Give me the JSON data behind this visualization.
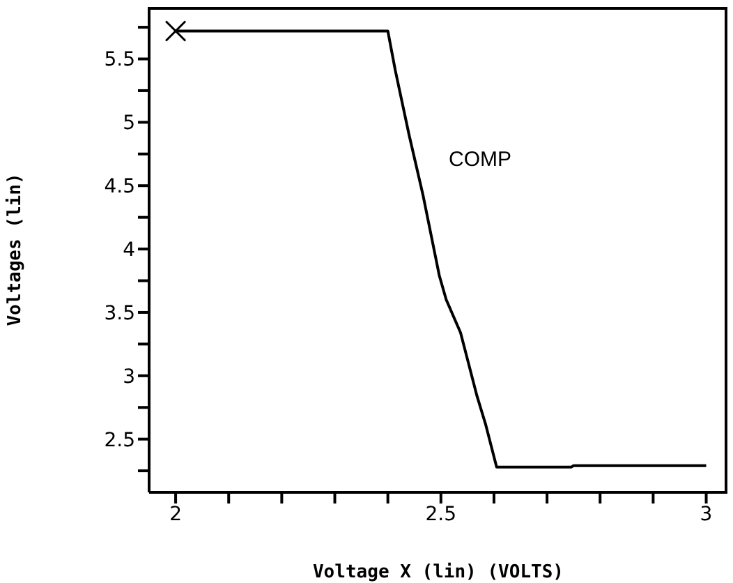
{
  "chart_data": {
    "type": "line",
    "xlabel": "Voltage X (lin) (VOLTS)",
    "ylabel": "Voltages (lin)",
    "annotations": [
      "COMP"
    ],
    "series": [
      {
        "type": "scatter",
        "color": "#000000",
        "marker": "cross",
        "x": [
          2
        ],
        "values": [
          5.72
        ]
      },
      {
        "color": "#000000",
        "marker": "none",
        "x": [
          2,
          2.4,
          2.414,
          2.44,
          2.466,
          2.497,
          2.51,
          2.537,
          2.568,
          2.584,
          2.605,
          2.746,
          2.75,
          3
        ],
        "values": [
          5.72,
          5.72,
          5.41,
          4.9,
          4.43,
          3.79,
          3.6,
          3.34,
          2.84,
          2.62,
          2.28,
          2.28,
          2.29,
          2.29
        ]
      }
    ],
    "xlim": [
      1.95,
      3.04
    ],
    "ylim": [
      2.08,
      5.91
    ],
    "xticks": [
      2,
      {
        "value": 2.1,
        "label": null
      },
      {
        "value": 2.2,
        "label": null
      },
      {
        "value": 2.3,
        "label": null
      },
      {
        "value": 2.4,
        "label": null
      },
      2.5,
      {
        "value": 2.6,
        "label": null
      },
      {
        "value": 2.7,
        "label": null
      },
      {
        "value": 2.8,
        "label": null
      },
      {
        "value": 2.9,
        "label": null
      },
      3
    ],
    "yticks": [
      {
        "value": 2.25,
        "label": null
      },
      2.5,
      {
        "value": 2.75,
        "label": null
      },
      3,
      {
        "value": 3.25,
        "label": null
      },
      3.5,
      {
        "value": 3.75,
        "label": null
      },
      4,
      {
        "value": 4.25,
        "label": null
      },
      4.5,
      {
        "value": 4.75,
        "label": null
      },
      5,
      {
        "value": 5.25,
        "label": null
      },
      5.5,
      {
        "value": 5.75,
        "label": null
      }
    ],
    "grid": false,
    "legend": false
  }
}
